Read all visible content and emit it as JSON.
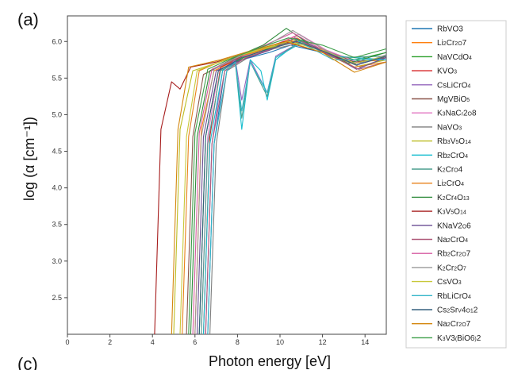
{
  "panel_label": "(a)",
  "bottom_panel_label": "(c)",
  "chart_data": {
    "type": "line",
    "title": "",
    "xlabel": "Photon energy [eV]",
    "ylabel": "log (α [cm⁻¹])",
    "xlim": [
      0,
      15
    ],
    "ylim": [
      2.0,
      6.35
    ],
    "xticks": [
      "0",
      "2",
      "4",
      "6",
      "8",
      "10",
      "12",
      "14"
    ],
    "yticks": [
      "2.5",
      "3.0",
      "3.5",
      "4.0",
      "4.5",
      "5.0",
      "5.5",
      "6.0"
    ],
    "grid": false,
    "legend_position": "right",
    "series": [
      {
        "name": "RbVO3",
        "sub": [
          0,
          0,
          0,
          0,
          0,
          1
        ],
        "color": "#1f77b4",
        "points": [
          [
            6.6,
            2.0
          ],
          [
            6.9,
            4.6
          ],
          [
            7.4,
            5.6
          ],
          [
            8.2,
            5.75
          ],
          [
            9.5,
            5.85
          ],
          [
            10.5,
            5.95
          ],
          [
            12,
            5.85
          ],
          [
            13.5,
            5.7
          ],
          [
            15,
            5.78
          ]
        ]
      },
      {
        "name": "Li2Cr2O7",
        "sub": [
          0,
          0,
          1,
          0,
          0,
          1,
          1,
          0
        ],
        "color": "#ff7f0e",
        "points": [
          [
            6.0,
            2.0
          ],
          [
            6.3,
            4.8
          ],
          [
            6.9,
            5.6
          ],
          [
            8.2,
            5.78
          ],
          [
            9.5,
            5.9
          ],
          [
            10.8,
            6.05
          ],
          [
            12,
            5.85
          ],
          [
            13.5,
            5.72
          ],
          [
            15,
            5.75
          ]
        ]
      },
      {
        "name": "NaVCdO4",
        "sub": [
          0,
          0,
          0,
          0,
          0,
          0,
          1
        ],
        "color": "#2ca02c",
        "points": [
          [
            6.2,
            2.0
          ],
          [
            6.5,
            4.7
          ],
          [
            7.1,
            5.6
          ],
          [
            8.3,
            5.78
          ],
          [
            9.6,
            5.92
          ],
          [
            10.8,
            6.02
          ],
          [
            12,
            5.88
          ],
          [
            13.5,
            5.75
          ],
          [
            15,
            5.85
          ]
        ]
      },
      {
        "name": "KVO3",
        "sub": [
          0,
          0,
          0,
          1
        ],
        "color": "#d62728",
        "points": [
          [
            6.4,
            2.0
          ],
          [
            6.7,
            4.7
          ],
          [
            7.2,
            5.65
          ],
          [
            8.3,
            5.8
          ],
          [
            9.5,
            5.92
          ],
          [
            10.8,
            6.08
          ],
          [
            12.2,
            5.85
          ],
          [
            13.6,
            5.68
          ],
          [
            15,
            5.8
          ]
        ]
      },
      {
        "name": "CsLiCrO4",
        "sub": [
          0,
          0,
          0,
          0,
          0,
          0,
          0,
          1
        ],
        "color": "#9467bd",
        "points": [
          [
            6.5,
            2.0
          ],
          [
            6.8,
            4.6
          ],
          [
            7.3,
            5.6
          ],
          [
            7.9,
            5.75
          ],
          [
            8.2,
            5.2
          ],
          [
            8.6,
            5.75
          ],
          [
            9.4,
            5.3
          ],
          [
            9.8,
            5.8
          ],
          [
            11,
            6.0
          ],
          [
            12.5,
            5.8
          ],
          [
            15,
            5.75
          ]
        ]
      },
      {
        "name": "MgVBiO5",
        "sub": [
          0,
          0,
          0,
          0,
          0,
          0,
          1
        ],
        "color": "#8c564b",
        "points": [
          [
            5.6,
            2.0
          ],
          [
            5.9,
            4.7
          ],
          [
            6.4,
            5.55
          ],
          [
            7.6,
            5.72
          ],
          [
            9.0,
            5.9
          ],
          [
            10.6,
            6.0
          ],
          [
            12,
            5.9
          ],
          [
            13.5,
            5.72
          ],
          [
            15,
            5.78
          ]
        ]
      },
      {
        "name": "K3NaCr2O8",
        "sub": [
          0,
          1,
          0,
          0,
          0,
          1,
          0,
          1
        ],
        "color": "#e377c2",
        "points": [
          [
            6.3,
            2.0
          ],
          [
            6.6,
            4.7
          ],
          [
            7.1,
            5.6
          ],
          [
            8.3,
            5.8
          ],
          [
            9.5,
            5.92
          ],
          [
            10.9,
            6.1
          ],
          [
            12.2,
            5.88
          ],
          [
            13.8,
            5.7
          ],
          [
            15,
            5.8
          ]
        ]
      },
      {
        "name": "NaVO3",
        "sub": [
          0,
          0,
          0,
          0,
          1
        ],
        "color": "#7f7f7f",
        "points": [
          [
            6.7,
            2.0
          ],
          [
            7.0,
            4.6
          ],
          [
            7.5,
            5.6
          ],
          [
            8.5,
            5.78
          ],
          [
            9.7,
            5.9
          ],
          [
            11,
            5.98
          ],
          [
            12.5,
            5.8
          ],
          [
            13.8,
            5.65
          ],
          [
            15,
            5.78
          ]
        ]
      },
      {
        "name": "Rb3V5O14",
        "sub": [
          0,
          0,
          1,
          0,
          1,
          0,
          1,
          1
        ],
        "color": "#bcbd22",
        "points": [
          [
            5.0,
            2.0
          ],
          [
            5.3,
            4.8
          ],
          [
            5.9,
            5.6
          ],
          [
            7.5,
            5.75
          ],
          [
            9.0,
            5.88
          ],
          [
            10.5,
            5.98
          ],
          [
            12,
            5.85
          ],
          [
            13.5,
            5.65
          ],
          [
            15,
            5.75
          ]
        ]
      },
      {
        "name": "Rb2CrO4",
        "sub": [
          0,
          0,
          1,
          0,
          0,
          0,
          1
        ],
        "color": "#17becf",
        "points": [
          [
            6.4,
            2.0
          ],
          [
            6.7,
            4.6
          ],
          [
            7.3,
            5.6
          ],
          [
            7.9,
            5.72
          ],
          [
            8.2,
            4.8
          ],
          [
            8.6,
            5.75
          ],
          [
            9.1,
            5.6
          ],
          [
            9.4,
            5.2
          ],
          [
            9.8,
            5.75
          ],
          [
            11,
            6.02
          ],
          [
            12.5,
            5.8
          ],
          [
            15,
            5.75
          ]
        ]
      },
      {
        "name": "K2CrO4",
        "sub": [
          0,
          1,
          0,
          0,
          1
        ],
        "color": "#4a9e8e",
        "points": [
          [
            6.3,
            2.0
          ],
          [
            6.6,
            4.6
          ],
          [
            7.2,
            5.6
          ],
          [
            7.9,
            5.7
          ],
          [
            8.2,
            4.95
          ],
          [
            8.6,
            5.72
          ],
          [
            9.4,
            5.25
          ],
          [
            9.8,
            5.78
          ],
          [
            11,
            6.0
          ],
          [
            12.5,
            5.78
          ],
          [
            15,
            5.8
          ]
        ]
      },
      {
        "name": "Li2CrO4",
        "sub": [
          0,
          0,
          1,
          0,
          0,
          0,
          1
        ],
        "color": "#e8811a",
        "points": [
          [
            5.4,
            2.0
          ],
          [
            5.7,
            4.7
          ],
          [
            6.2,
            5.6
          ],
          [
            7.4,
            5.75
          ],
          [
            8.8,
            5.85
          ],
          [
            10.4,
            6.02
          ],
          [
            12,
            5.9
          ],
          [
            13.5,
            5.65
          ],
          [
            15,
            5.72
          ]
        ]
      },
      {
        "name": "K2Cr4O13",
        "sub": [
          0,
          1,
          0,
          0,
          1,
          0,
          1,
          1
        ],
        "color": "#2e8b3a",
        "points": [
          [
            5.8,
            2.0
          ],
          [
            6.1,
            4.7
          ],
          [
            6.7,
            5.6
          ],
          [
            8.0,
            5.8
          ],
          [
            9.2,
            5.95
          ],
          [
            10.3,
            6.18
          ],
          [
            11.6,
            5.92
          ],
          [
            13.2,
            5.7
          ],
          [
            15,
            5.85
          ]
        ]
      },
      {
        "name": "K3V5O14",
        "sub": [
          0,
          1,
          0,
          1,
          0,
          1,
          1
        ],
        "color": "#a61c1c",
        "points": [
          [
            4.1,
            2.0
          ],
          [
            4.4,
            4.8
          ],
          [
            4.9,
            5.45
          ],
          [
            5.3,
            5.35
          ],
          [
            5.8,
            5.65
          ],
          [
            7.0,
            5.72
          ],
          [
            8.5,
            5.85
          ],
          [
            10.2,
            6.0
          ],
          [
            12,
            5.85
          ],
          [
            13.5,
            5.7
          ],
          [
            15,
            5.8
          ]
        ]
      },
      {
        "name": "KNaV2O6",
        "sub": [
          0,
          0,
          0,
          0,
          0,
          1,
          0,
          1
        ],
        "color": "#6a4c93",
        "points": [
          [
            6.1,
            2.0
          ],
          [
            6.4,
            4.7
          ],
          [
            7.0,
            5.6
          ],
          [
            8.2,
            5.75
          ],
          [
            9.5,
            5.88
          ],
          [
            10.7,
            6.05
          ],
          [
            12.2,
            5.85
          ],
          [
            13.6,
            5.62
          ],
          [
            15,
            5.78
          ]
        ]
      },
      {
        "name": "Na2CrO4",
        "sub": [
          0,
          0,
          1,
          0,
          0,
          0,
          1
        ],
        "color": "#b05a7a",
        "points": [
          [
            6.5,
            2.0
          ],
          [
            6.8,
            4.6
          ],
          [
            7.4,
            5.6
          ],
          [
            8.4,
            5.78
          ],
          [
            9.6,
            5.9
          ],
          [
            10.9,
            6.02
          ],
          [
            12.3,
            5.82
          ],
          [
            13.7,
            5.62
          ],
          [
            15,
            5.72
          ]
        ]
      },
      {
        "name": "Rb2Cr2O7",
        "sub": [
          0,
          0,
          1,
          0,
          0,
          1,
          1,
          0
        ],
        "color": "#d65aa0",
        "points": [
          [
            5.9,
            2.0
          ],
          [
            6.2,
            4.75
          ],
          [
            6.8,
            5.62
          ],
          [
            8.1,
            5.8
          ],
          [
            9.3,
            5.95
          ],
          [
            10.6,
            6.12
          ],
          [
            12,
            5.88
          ],
          [
            13.6,
            5.68
          ],
          [
            15,
            5.8
          ]
        ]
      },
      {
        "name": "K2Cr2O7",
        "sub": [
          0,
          1,
          0,
          0,
          1,
          0,
          1
        ],
        "color": "#9a9a9a",
        "points": [
          [
            6.0,
            2.0
          ],
          [
            6.3,
            4.7
          ],
          [
            6.9,
            5.62
          ],
          [
            8.1,
            5.8
          ],
          [
            9.4,
            5.95
          ],
          [
            10.6,
            6.15
          ],
          [
            12,
            5.9
          ],
          [
            13.6,
            5.68
          ],
          [
            15,
            5.82
          ]
        ]
      },
      {
        "name": "CsVO3",
        "sub": [
          0,
          0,
          0,
          0,
          1
        ],
        "color": "#c8c83a",
        "points": [
          [
            5.3,
            2.0
          ],
          [
            5.6,
            4.7
          ],
          [
            6.1,
            5.6
          ],
          [
            7.4,
            5.75
          ],
          [
            8.9,
            5.88
          ],
          [
            10.4,
            6.0
          ],
          [
            12,
            5.88
          ],
          [
            13.5,
            5.7
          ],
          [
            15,
            5.8
          ]
        ]
      },
      {
        "name": "RbLiCrO4",
        "sub": [
          0,
          0,
          0,
          0,
          0,
          0,
          0,
          1
        ],
        "color": "#33b5c9",
        "points": [
          [
            6.6,
            2.0
          ],
          [
            6.9,
            4.6
          ],
          [
            7.5,
            5.6
          ],
          [
            7.9,
            5.72
          ],
          [
            8.2,
            5.05
          ],
          [
            8.6,
            5.72
          ],
          [
            9.4,
            5.3
          ],
          [
            9.8,
            5.78
          ],
          [
            11,
            5.98
          ],
          [
            12.5,
            5.75
          ],
          [
            15,
            5.75
          ]
        ]
      },
      {
        "name": "Cs2SrV4O12",
        "sub": [
          0,
          0,
          1,
          0,
          0,
          1,
          0,
          1,
          1
        ],
        "color": "#35607f",
        "points": [
          [
            6.2,
            2.0
          ],
          [
            6.5,
            4.7
          ],
          [
            7.1,
            5.6
          ],
          [
            8.2,
            5.78
          ],
          [
            9.5,
            5.9
          ],
          [
            10.8,
            6.0
          ],
          [
            12.2,
            5.85
          ],
          [
            13.6,
            5.68
          ],
          [
            15,
            5.8
          ]
        ]
      },
      {
        "name": "Na2Cr2O7",
        "sub": [
          0,
          0,
          1,
          0,
          0,
          1,
          1,
          0
        ],
        "color": "#d4880f",
        "points": [
          [
            4.9,
            2.0
          ],
          [
            5.2,
            4.8
          ],
          [
            5.7,
            5.65
          ],
          [
            7.2,
            5.75
          ],
          [
            8.7,
            5.88
          ],
          [
            10.3,
            6.0
          ],
          [
            12,
            5.85
          ],
          [
            13.5,
            5.58
          ],
          [
            15,
            5.72
          ]
        ]
      },
      {
        "name": "K3V3(BiO6)2",
        "sub": [
          0,
          1,
          0,
          0,
          1,
          0,
          0,
          0,
          0,
          1,
          0,
          0
        ],
        "color": "#3c9e48",
        "points": [
          [
            5.7,
            2.0
          ],
          [
            6.0,
            4.75
          ],
          [
            6.6,
            5.62
          ],
          [
            7.8,
            5.78
          ],
          [
            9.1,
            5.92
          ],
          [
            10.4,
            6.05
          ],
          [
            12,
            5.95
          ],
          [
            13.5,
            5.78
          ],
          [
            15,
            5.9
          ]
        ]
      }
    ]
  }
}
